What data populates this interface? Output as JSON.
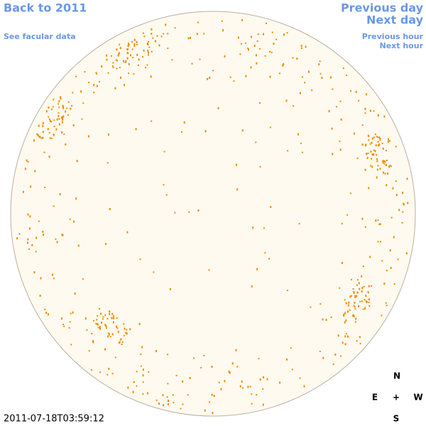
{
  "links": {
    "back": "Back to 2011",
    "facular": "See facular data",
    "previous_day": "Previous day",
    "next_day": "Next day",
    "previous_hour": "Previous hour",
    "next_hour": "Next hour"
  },
  "timestamp": "2011-07-18T03:59:12",
  "compass": {
    "north": "N",
    "east": "E",
    "center": "+",
    "west": "W",
    "south": "S"
  }
}
